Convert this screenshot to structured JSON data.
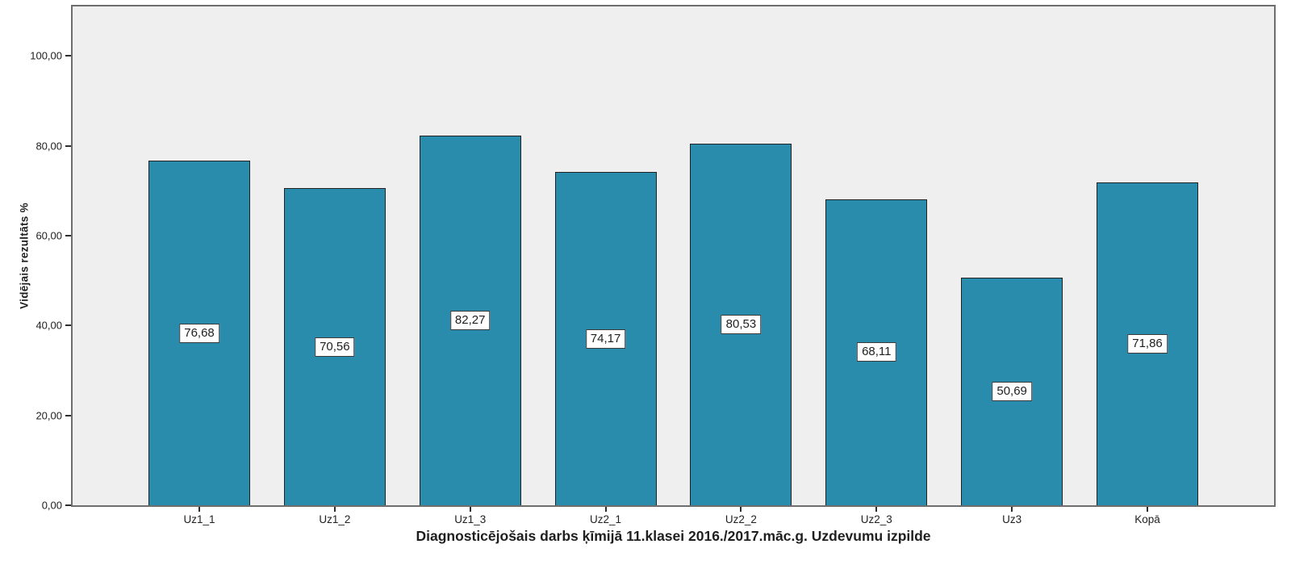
{
  "chart_data": {
    "type": "bar",
    "title": "",
    "xlabel": "Diagnosticējošais darbs ķīmijā 11.klasei 2016./2017.māc.g. Uzdevumu izpilde",
    "ylabel": "Vidējais rezultāts %",
    "categories": [
      "Uz1_1",
      "Uz1_2",
      "Uz1_3",
      "Uz2_1",
      "Uz2_2",
      "Uz2_3",
      "Uz3",
      "Kopā"
    ],
    "values": [
      76.68,
      70.56,
      82.27,
      74.17,
      80.53,
      68.11,
      50.69,
      71.86
    ],
    "value_labels": [
      "76,68",
      "70,56",
      "82,27",
      "74,17",
      "80,53",
      "68,11",
      "50,69",
      "71,86"
    ],
    "yticks": [
      0,
      20,
      40,
      60,
      80,
      100
    ],
    "ytick_labels": [
      "0,00",
      "20,00",
      "40,00",
      "60,00",
      "80,00",
      "100,00"
    ],
    "ylim": [
      0,
      111
    ],
    "grid": false,
    "legend_position": "none",
    "value_label_position": "middle-of-bar",
    "colors": {
      "bar_fill": "#2a8cad",
      "bar_border": "#222222",
      "plot_bg": "#efefef",
      "frame_border": "#6e6e6e",
      "tick_color": "#2e2e2e",
      "label_box_bg": "#ffffff",
      "label_box_border": "#3a3a3a",
      "text": "#1f1f1f"
    }
  }
}
